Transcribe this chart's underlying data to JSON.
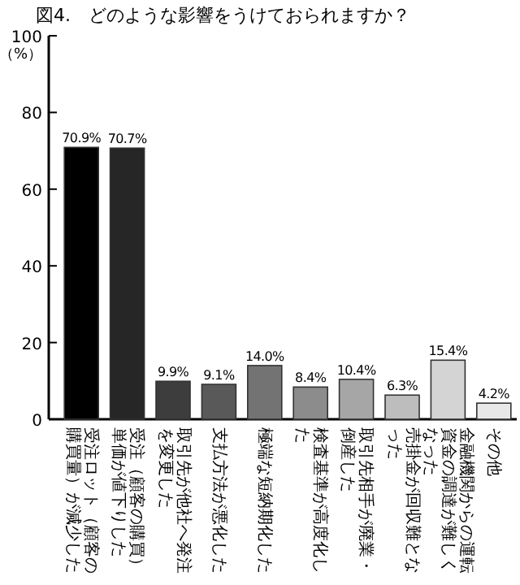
{
  "chart_data": {
    "type": "bar",
    "title": "図4.　どのような影響をうけておられますか？",
    "ylabel": "（%）",
    "categories": [
      "受注ロット（顧客の購買量）が減少した",
      "受注（顧客の購買）単価が値下りした",
      "取引先が他社へ発注を変更した",
      "支払方法が悪化した",
      "極端な短納期化した",
      "検査基準が高度化した",
      "取引先相手が廃業・倒産した",
      "売掛金が回収難となった",
      "金融機関からの運転資金の調達が難しくなった",
      "その他"
    ],
    "values": [
      70.9,
      70.7,
      9.9,
      9.1,
      14.0,
      8.4,
      10.4,
      6.3,
      15.4,
      4.2
    ],
    "value_labels": [
      "70.9%",
      "70.7%",
      "9.9%",
      "9.1%",
      "14.0%",
      "8.4%",
      "10.4%",
      "6.3%",
      "15.4%",
      "4.2%"
    ],
    "colors": [
      "#000000",
      "#262626",
      "#3d3d3d",
      "#595959",
      "#737373",
      "#8c8c8c",
      "#a6a6a6",
      "#bdbdbd",
      "#d4d4d4",
      "#e8e8e8"
    ],
    "ylim": [
      0,
      100
    ],
    "yticks": [
      0,
      20,
      40,
      60,
      80,
      100
    ]
  }
}
